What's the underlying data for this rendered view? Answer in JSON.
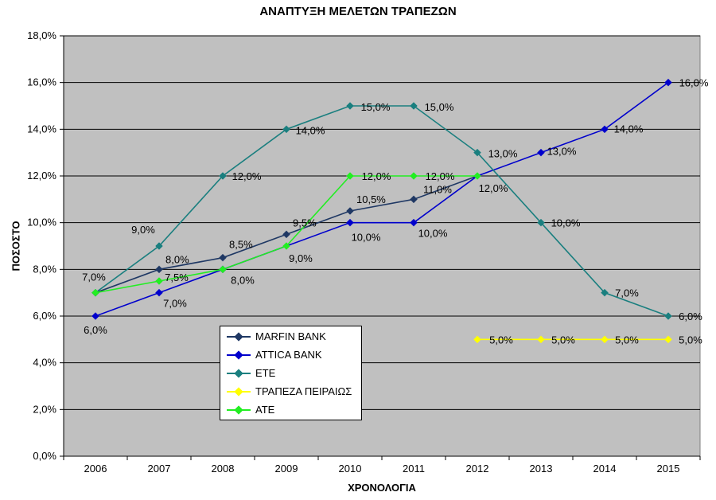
{
  "chart_data": {
    "type": "line",
    "title": "ΑΝΑΠΤΥΞΗ ΜΕΛΕΤΩΝ ΤΡΑΠΕΖΩΝ",
    "xlabel": "ΧΡΟΝΟΛΟΓΙΑ",
    "ylabel": "ΠΟΣΟΣΤΟ",
    "categories": [
      "2006",
      "2007",
      "2008",
      "2009",
      "2010",
      "2011",
      "2012",
      "2013",
      "2014",
      "2015"
    ],
    "ylim": [
      0,
      18
    ],
    "yticks": [
      "0,0%",
      "2,0%",
      "4,0%",
      "6,0%",
      "8,0%",
      "10,0%",
      "12,0%",
      "14,0%",
      "16,0%",
      "18,0%"
    ],
    "grid": true,
    "legend_position": "bottom-left inside plot",
    "plot_background": "#c0c0c0",
    "series": [
      {
        "name": "MARFIN BANK",
        "color": "#1f3864",
        "values": [
          7.0,
          8.0,
          8.5,
          9.5,
          10.5,
          11.0,
          12.0,
          null,
          null,
          null
        ],
        "labels": [
          "",
          "8,0%",
          "8,5%",
          "9,5%",
          "10,5%",
          "11,0%",
          "",
          "",
          "",
          ""
        ]
      },
      {
        "name": "ATTICA BANK",
        "color": "#0000cc",
        "values": [
          6.0,
          7.0,
          8.0,
          9.0,
          10.0,
          10.0,
          12.0,
          13.0,
          14.0,
          16.0
        ],
        "labels": [
          "6,0%",
          "7,0%",
          "8,0%",
          "9,0%",
          "10,0%",
          "10,0%",
          "12,0%",
          "13,0%",
          "14,0%",
          "16,0%"
        ]
      },
      {
        "name": "ΕΤΕ",
        "color": "#1a7f7f",
        "values": [
          7.0,
          9.0,
          12.0,
          14.0,
          15.0,
          15.0,
          13.0,
          10.0,
          7.0,
          6.0
        ],
        "labels": [
          "7,0%",
          "9,0%",
          "12,0%",
          "14,0%",
          "15,0%",
          "15,0%",
          "13,0%",
          "10,0%",
          "7,0%",
          "6,0%"
        ]
      },
      {
        "name": "ΤΡΑΠΕΖΑ ΠΕΙΡΑΙΩΣ",
        "color": "#ffff00",
        "values": [
          null,
          null,
          null,
          null,
          null,
          null,
          5.0,
          5.0,
          5.0,
          5.0
        ],
        "labels": [
          "",
          "",
          "",
          "",
          "",
          "",
          "5,0%",
          "5,0%",
          "5,0%",
          "5,0%"
        ]
      },
      {
        "name": "ΑΤΕ",
        "color": "#22ee22",
        "values": [
          7.0,
          7.5,
          8.0,
          9.0,
          12.0,
          12.0,
          12.0,
          null,
          null,
          null
        ],
        "labels": [
          "",
          "7,5%",
          "",
          "",
          "12,0%",
          "12,0%",
          "",
          "",
          "",
          ""
        ]
      }
    ]
  }
}
